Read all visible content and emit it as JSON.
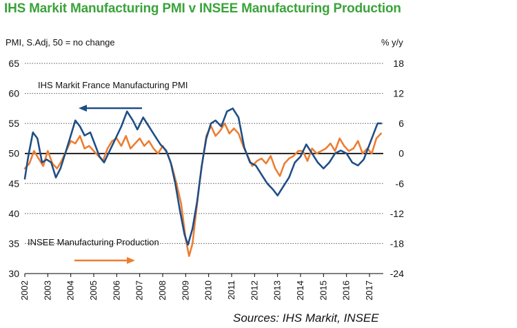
{
  "header": {
    "title": "IHS Markit Manufacturing PMI v INSEE Manufacturing Production",
    "left_unit": "PMI, S.Adj, 50 = no change",
    "right_unit": "% y/y",
    "source": "Sources: IHS Markit, INSEE"
  },
  "colors": {
    "title": "#3aa33a",
    "pmi_series": "#1f4e87",
    "production_series": "#ed7d31"
  },
  "chart_data": {
    "type": "line",
    "grid": "dotted horizontal",
    "x_ticks": [
      "2002",
      "2003",
      "2004",
      "2005",
      "2006",
      "2007",
      "2008",
      "2009",
      "2010",
      "2011",
      "2012",
      "2013",
      "2014",
      "2015",
      "2016",
      "2017"
    ],
    "x_range": [
      2002,
      2017.6
    ],
    "y_left": {
      "ticks": [
        30,
        35,
        40,
        45,
        50,
        55,
        60,
        65
      ],
      "ylim": [
        30,
        65
      ]
    },
    "y_right": {
      "ticks": [
        -24,
        -18,
        -12,
        -6,
        0,
        6,
        12,
        18
      ],
      "ylim": [
        -24,
        18
      ]
    },
    "annotations": [
      {
        "text": "IHS Markit France Manufacturing PMI",
        "series": "pmi",
        "arrow": "left"
      },
      {
        "text": "INSEE Manufacturing Production",
        "series": "production",
        "arrow": "right"
      }
    ],
    "series": [
      {
        "key": "pmi",
        "axis": "left",
        "x": [
          2002.0,
          2002.15,
          2002.35,
          2002.55,
          2002.75,
          2002.95,
          2003.15,
          2003.35,
          2003.55,
          2003.8,
          2004.0,
          2004.2,
          2004.4,
          2004.6,
          2004.85,
          2005.05,
          2005.25,
          2005.45,
          2005.7,
          2005.95,
          2006.2,
          2006.45,
          2006.7,
          2006.9,
          2007.15,
          2007.4,
          2007.65,
          2007.9,
          2008.15,
          2008.35,
          2008.55,
          2008.75,
          2008.95,
          2009.1,
          2009.3,
          2009.5,
          2009.7,
          2009.9,
          2010.1,
          2010.3,
          2010.55,
          2010.8,
          2011.05,
          2011.3,
          2011.55,
          2011.8,
          2012.05,
          2012.3,
          2012.55,
          2012.8,
          2013.0,
          2013.25,
          2013.5,
          2013.75,
          2014.0,
          2014.25,
          2014.5,
          2014.75,
          2015.0,
          2015.25,
          2015.5,
          2015.75,
          2016.0,
          2016.25,
          2016.5,
          2016.75,
          2017.0,
          2017.2,
          2017.35,
          2017.5
        ],
        "values": [
          45.8,
          49.5,
          53.5,
          52.5,
          48.5,
          49.0,
          48.5,
          46.0,
          47.5,
          50.5,
          53.0,
          55.5,
          54.5,
          53.0,
          53.5,
          51.5,
          49.5,
          48.5,
          50.5,
          52.5,
          54.5,
          57.0,
          55.5,
          54.0,
          56.0,
          54.5,
          53.0,
          51.5,
          50.5,
          48.5,
          45.0,
          40.5,
          36.5,
          34.8,
          37.5,
          42.0,
          48.0,
          52.5,
          55.0,
          55.5,
          54.5,
          57.0,
          57.5,
          56.0,
          51.0,
          48.5,
          48.0,
          46.5,
          45.0,
          44.0,
          43.0,
          44.5,
          46.0,
          48.5,
          49.5,
          51.5,
          50.0,
          48.5,
          47.5,
          48.5,
          50.0,
          50.5,
          50.0,
          48.5,
          48.0,
          49.0,
          51.5,
          53.5,
          55.0,
          55.0
        ]
      },
      {
        "key": "production",
        "axis": "right",
        "x": [
          2002.0,
          2002.2,
          2002.4,
          2002.6,
          2002.8,
          2003.0,
          2003.2,
          2003.4,
          2003.6,
          2003.8,
          2004.0,
          2004.2,
          2004.4,
          2004.6,
          2004.8,
          2005.0,
          2005.2,
          2005.4,
          2005.6,
          2005.8,
          2006.0,
          2006.2,
          2006.4,
          2006.6,
          2006.8,
          2007.0,
          2007.2,
          2007.4,
          2007.6,
          2007.8,
          2008.0,
          2008.2,
          2008.4,
          2008.6,
          2008.8,
          2009.0,
          2009.15,
          2009.3,
          2009.45,
          2009.6,
          2009.75,
          2009.9,
          2010.1,
          2010.3,
          2010.5,
          2010.7,
          2010.9,
          2011.1,
          2011.3,
          2011.5,
          2011.7,
          2011.9,
          2012.1,
          2012.3,
          2012.5,
          2012.7,
          2012.9,
          2013.1,
          2013.3,
          2013.5,
          2013.7,
          2013.9,
          2014.1,
          2014.3,
          2014.5,
          2014.7,
          2014.9,
          2015.1,
          2015.3,
          2015.5,
          2015.7,
          2015.9,
          2016.1,
          2016.3,
          2016.5,
          2016.7,
          2016.9,
          2017.1,
          2017.3,
          2017.5
        ],
        "values": [
          -3.0,
          -2.0,
          0.5,
          -1.0,
          -2.5,
          0.5,
          -2.0,
          -3.0,
          -1.5,
          0.5,
          2.5,
          2.0,
          3.5,
          1.0,
          1.5,
          0.5,
          -0.5,
          -1.5,
          1.0,
          2.5,
          3.0,
          1.5,
          3.5,
          1.0,
          2.0,
          3.0,
          1.5,
          2.5,
          1.0,
          0.0,
          1.5,
          0.0,
          -2.5,
          -6.0,
          -10.0,
          -17.0,
          -20.5,
          -18.0,
          -12.0,
          -6.0,
          -1.0,
          3.5,
          5.5,
          3.5,
          4.5,
          6.0,
          4.0,
          5.0,
          4.0,
          1.5,
          -0.5,
          -2.5,
          -1.5,
          -1.0,
          -2.0,
          -0.5,
          -3.0,
          -4.5,
          -2.0,
          -1.0,
          -0.5,
          0.5,
          0.5,
          -1.5,
          1.0,
          0.0,
          0.5,
          1.0,
          2.0,
          0.5,
          3.0,
          1.5,
          0.5,
          1.0,
          2.5,
          0.0,
          1.0,
          0.0,
          3.0,
          4.0
        ]
      }
    ]
  }
}
